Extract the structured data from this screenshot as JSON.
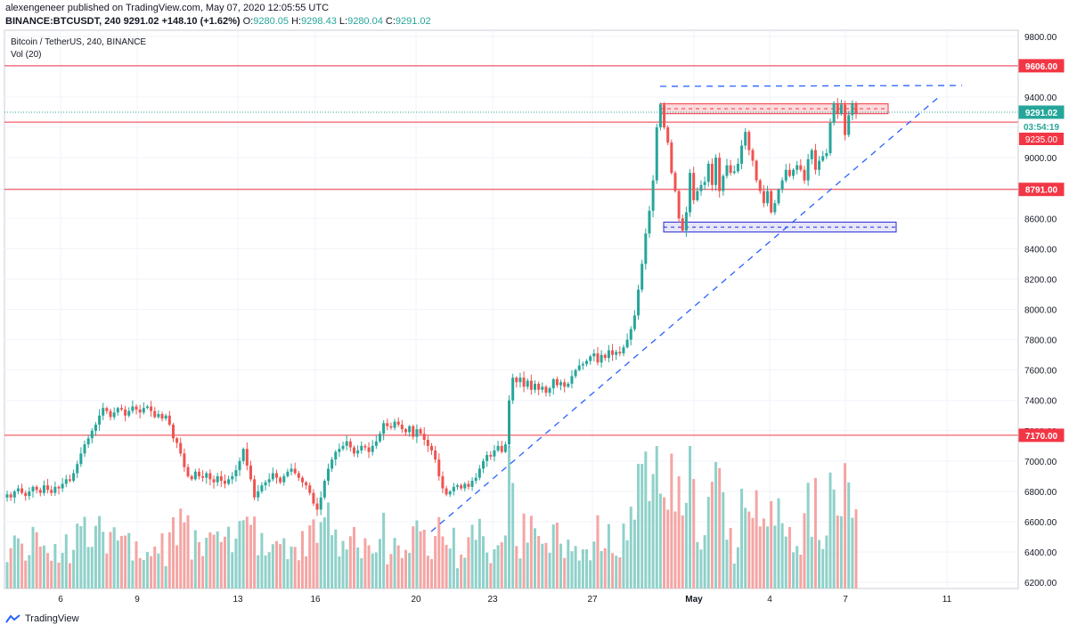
{
  "header": {
    "line1": "alexengeneer published on TradingView.com, May 07, 2020 12:05:55 UTC",
    "symbol": "BINANCE:BTCUSDT, 240",
    "last": "9291.02",
    "change": "+148.10 (+1.62%)",
    "o_label": "O:",
    "o_value": "9280.05",
    "h_label": "H:",
    "h_value": "9298.43",
    "l_label": "L:",
    "l_value": "9280.04",
    "c_label": "C:",
    "c_value": "9291.02"
  },
  "legend": {
    "title": "Bitcoin / TetherUS, 240, BINANCE",
    "volume": "Vol (20)"
  },
  "footer": {
    "brand": "TradingView"
  },
  "colors": {
    "up": "#26a69a",
    "down": "#ef5350",
    "up_vol": "#8fd1c9",
    "down_vol": "#f4a5a3",
    "level_line": "#f23645",
    "trend_line": "#2962ff",
    "grid": "#f0f3fa",
    "axis_text": "#131722"
  },
  "chart_data": {
    "type": "candlestick",
    "title": "Bitcoin / TetherUS, 240, BINANCE",
    "yaxis_ticks": [
      6200,
      6400,
      6600,
      6800,
      7000,
      7200,
      7400,
      7600,
      7800,
      8000,
      8200,
      8400,
      8600,
      8800,
      9000,
      9200,
      9400,
      9600,
      9800
    ],
    "ylim": [
      6160,
      9840
    ],
    "xaxis_labels": [
      "6",
      "9",
      "13",
      "16",
      "20",
      "23",
      "27",
      "May",
      "4",
      "7",
      "11"
    ],
    "price_labels": [
      {
        "text": "9606.00",
        "price": 9606,
        "style": "level"
      },
      {
        "text": "9291.02",
        "price": 9291,
        "style": "last"
      },
      {
        "text": "03:54:19",
        "price": 9212,
        "style": "timer"
      },
      {
        "text": "9235.00",
        "price": 9235,
        "style": "level_hidden"
      },
      {
        "text": "8791.00",
        "price": 8791,
        "style": "level"
      },
      {
        "text": "7170.00",
        "price": 7170,
        "style": "level"
      }
    ],
    "horizontal_levels": [
      9606,
      9235,
      8791,
      7170
    ],
    "last_price": 9291.02,
    "zones": [
      {
        "from": 9290,
        "to": 9355,
        "color": "red"
      },
      {
        "from": 8510,
        "to": 8575,
        "color": "blue"
      }
    ],
    "candles_close": [
      6780,
      6760,
      6800,
      6820,
      6790,
      6770,
      6800,
      6830,
      6810,
      6790,
      6840,
      6810,
      6790,
      6830,
      6820,
      6850,
      6880,
      6870,
      6920,
      6980,
      7050,
      7110,
      7150,
      7200,
      7240,
      7300,
      7350,
      7330,
      7290,
      7320,
      7350,
      7340,
      7300,
      7330,
      7360,
      7340,
      7320,
      7350,
      7360,
      7330,
      7290,
      7310,
      7280,
      7300,
      7240,
      7150,
      7120,
      7050,
      6960,
      6900,
      6880,
      6930,
      6900,
      6890,
      6920,
      6880,
      6860,
      6900,
      6870,
      6850,
      6880,
      6900,
      6940,
      7000,
      7080,
      6970,
      6880,
      6760,
      6800,
      6840,
      6860,
      6880,
      6920,
      6890,
      6860,
      6900,
      6930,
      6950,
      6920,
      6890,
      6860,
      6840,
      6790,
      6720,
      6680,
      6760,
      6870,
      6950,
      7010,
      7060,
      7080,
      7100,
      7130,
      7090,
      7050,
      7070,
      7100,
      7090,
      7060,
      7100,
      7130,
      7180,
      7250,
      7230,
      7220,
      7260,
      7240,
      7210,
      7190,
      7230,
      7160,
      7210,
      7180,
      7140,
      7100,
      7070,
      7010,
      6900,
      6820,
      6780,
      6800,
      6830,
      6840,
      6820,
      6850,
      6830,
      6870,
      6890,
      6950,
      7000,
      7040,
      7030,
      7070,
      7100,
      7060,
      7110,
      7400,
      7550,
      7520,
      7550,
      7490,
      7530,
      7470,
      7510,
      7470,
      7490,
      7450,
      7480,
      7540,
      7500,
      7520,
      7490,
      7510,
      7560,
      7600,
      7630,
      7640,
      7660,
      7690,
      7710,
      7650,
      7700,
      7680,
      7730,
      7700,
      7720,
      7710,
      7750,
      7800,
      7870,
      7960,
      8130,
      8300,
      8500,
      8650,
      8850,
      9200,
      9350,
      9200,
      9100,
      8900,
      8780,
      8600,
      8520,
      8640,
      8900,
      8720,
      8780,
      8820,
      8840,
      8960,
      8820,
      9000,
      8780,
      8880,
      8950,
      8900,
      8910,
      8960,
      9080,
      9170,
      9050,
      8980,
      8850,
      8780,
      8700,
      8780,
      8640,
      8700,
      8790,
      8850,
      8920,
      8880,
      8920,
      8950,
      8920,
      8850,
      8990,
      9050,
      8920,
      8980,
      9010,
      9030,
      9230,
      9360,
      9290,
      9350,
      9150,
      9280,
      9360,
      9291
    ],
    "volume_scale": "relative"
  }
}
